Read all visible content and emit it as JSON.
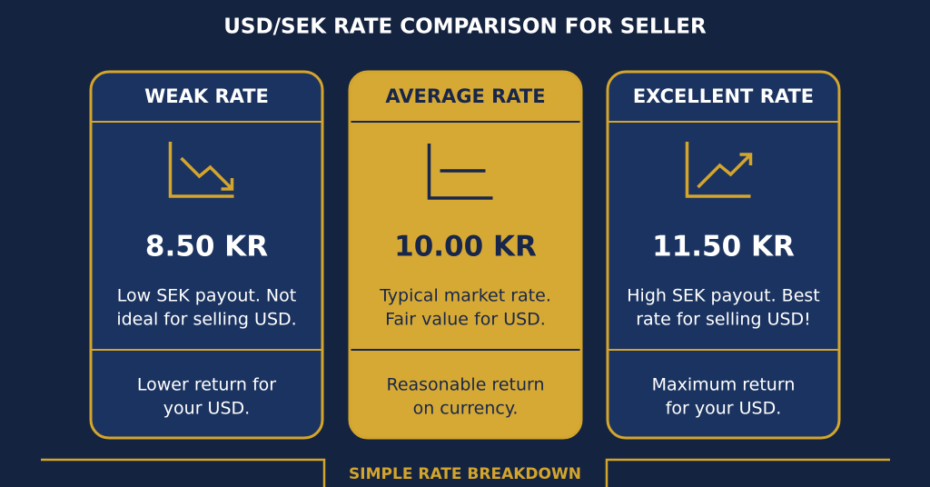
{
  "title": "USD/SEK RATE COMPARISON FOR SELLER",
  "cards": [
    {
      "title": "WEAK RATE",
      "rate": "8.50 KR",
      "description": [
        "Low SEK payout. Not",
        "ideal for selling USD."
      ],
      "footer": [
        "Lower return for",
        "your USD."
      ]
    },
    {
      "title": "AVERAGE RATE",
      "rate": "10.00 KR",
      "description": [
        "Typical market rate.",
        "Fair value for USD."
      ],
      "footer": [
        "Reasonable return",
        "on currency."
      ]
    },
    {
      "title": "EXCELLENT RATE",
      "rate": "11.50 KR",
      "description": [
        "High SEK payout. Best",
        "rate for selling USD!"
      ],
      "footer": [
        "Maximum return",
        "for your USD."
      ]
    }
  ],
  "breakdown": {
    "title": "SIMPLE RATE BREAKDOWN"
  }
}
